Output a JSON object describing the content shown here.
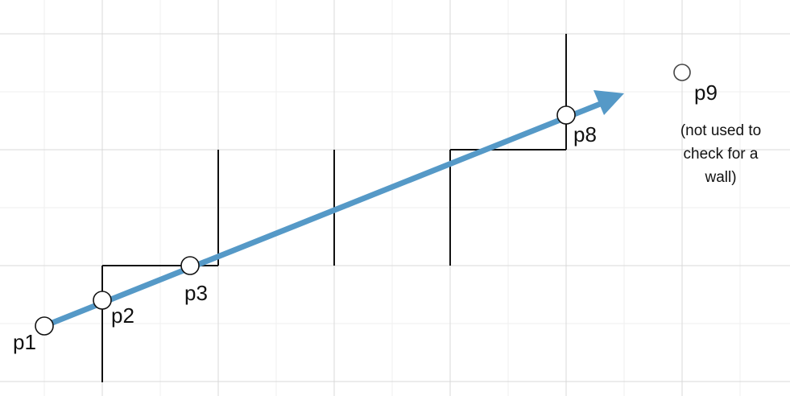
{
  "colors": {
    "background": "#ffffff",
    "grid_major": "#d8d8d8",
    "grid_minor": "#efefef",
    "wall": "#111111",
    "ray": "#5599c7",
    "point_fill": "#ffffff",
    "point_stroke": "#111111"
  },
  "points": {
    "p1": "p1",
    "p2": "p2",
    "p3": "p3",
    "p8": "p8",
    "p9": "p9"
  },
  "note": {
    "line1": "(not used to",
    "line2": "check for a",
    "line3": "wall)"
  }
}
